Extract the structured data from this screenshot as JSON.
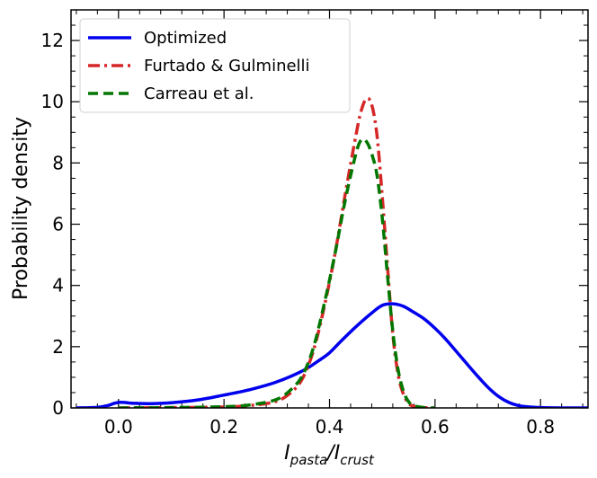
{
  "chart_data": {
    "type": "line",
    "title": "",
    "xlabel": {
      "base": "I",
      "sub1": "pasta",
      "sep": "/",
      "base2": "I",
      "sub2": "crust"
    },
    "ylabel": "Probability density",
    "xlim": [
      -0.09,
      0.89
    ],
    "ylim": [
      0,
      13
    ],
    "xticks": [
      0.0,
      0.2,
      0.4,
      0.6,
      0.8
    ],
    "xtick_labels": [
      "0.0",
      "0.2",
      "0.4",
      "0.6",
      "0.8"
    ],
    "yticks": [
      0,
      2,
      4,
      6,
      8,
      10,
      12
    ],
    "ytick_labels": [
      "0",
      "2",
      "4",
      "6",
      "8",
      "10",
      "12"
    ],
    "legend_position": "top-left",
    "series": [
      {
        "name": "Optimized",
        "color": "#0000ee",
        "dash": "solid",
        "x": [
          -0.08,
          -0.04,
          -0.02,
          0.0,
          0.03,
          0.06,
          0.1,
          0.15,
          0.2,
          0.25,
          0.3,
          0.35,
          0.38,
          0.4,
          0.42,
          0.45,
          0.48,
          0.5,
          0.52,
          0.54,
          0.56,
          0.58,
          0.6,
          0.62,
          0.65,
          0.68,
          0.7,
          0.72,
          0.74,
          0.76,
          0.78,
          0.8,
          0.84,
          0.89
        ],
        "y": [
          0.0,
          0.02,
          0.08,
          0.18,
          0.15,
          0.14,
          0.17,
          0.26,
          0.42,
          0.6,
          0.85,
          1.22,
          1.55,
          1.8,
          2.15,
          2.65,
          3.1,
          3.35,
          3.4,
          3.32,
          3.12,
          2.9,
          2.6,
          2.25,
          1.65,
          1.05,
          0.68,
          0.38,
          0.18,
          0.07,
          0.03,
          0.01,
          0.0,
          0.0
        ]
      },
      {
        "name": "Furtado & Gulminelli",
        "color": "#d62728",
        "dash": "dashdot",
        "x": [
          0.0,
          0.1,
          0.2,
          0.25,
          0.3,
          0.33,
          0.35,
          0.37,
          0.39,
          0.41,
          0.43,
          0.45,
          0.46,
          0.47,
          0.48,
          0.49,
          0.5,
          0.51,
          0.52,
          0.53,
          0.54,
          0.55,
          0.56,
          0.58,
          0.6
        ],
        "y": [
          0.0,
          0.01,
          0.03,
          0.08,
          0.22,
          0.55,
          1.0,
          1.9,
          3.3,
          5.0,
          7.0,
          8.9,
          9.7,
          10.1,
          9.9,
          8.9,
          6.9,
          4.6,
          2.4,
          1.1,
          0.45,
          0.15,
          0.05,
          0.01,
          0.0
        ]
      },
      {
        "name": "Carreau et al.",
        "color": "#007700",
        "dash": "dashed",
        "x": [
          0.0,
          0.1,
          0.2,
          0.25,
          0.3,
          0.33,
          0.35,
          0.37,
          0.39,
          0.41,
          0.43,
          0.45,
          0.46,
          0.47,
          0.48,
          0.49,
          0.5,
          0.51,
          0.52,
          0.53,
          0.54,
          0.55,
          0.56,
          0.58,
          0.6
        ],
        "y": [
          0.0,
          0.01,
          0.04,
          0.1,
          0.28,
          0.65,
          1.1,
          2.0,
          3.4,
          5.0,
          6.8,
          8.3,
          8.75,
          8.7,
          8.3,
          7.6,
          6.2,
          4.3,
          2.5,
          1.25,
          0.55,
          0.2,
          0.07,
          0.01,
          0.0
        ]
      }
    ]
  }
}
